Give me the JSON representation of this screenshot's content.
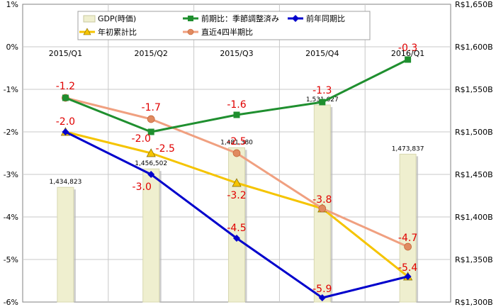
{
  "chart_data": {
    "type": "bar+line",
    "categories": [
      "2015/Q1",
      "2015/Q2",
      "2015/Q3",
      "2015/Q4",
      "2016/Q1"
    ],
    "left_axis": {
      "range": [
        -6,
        1
      ],
      "ticks": [
        1,
        0,
        -1,
        -2,
        -3,
        -4,
        -5,
        -6
      ],
      "tick_labels": [
        "1%",
        "0%",
        "-1%",
        "-2%",
        "-3%",
        "-4%",
        "-5%",
        "-6%"
      ]
    },
    "right_axis": {
      "range": [
        1300,
        1650
      ],
      "ticks": [
        1650,
        1600,
        1550,
        1500,
        1450,
        1400,
        1350,
        1300
      ],
      "tick_labels": [
        "R$1,650B",
        "R$1,600B",
        "R$1,550B",
        "R$1,500B",
        "R$1,450B",
        "R$1,400B",
        "R$1,350B",
        "R$1,300B"
      ]
    },
    "bars": {
      "name": "GDP(時価)",
      "values": [
        1434823,
        1456502,
        1481380,
        1531627,
        1473837
      ],
      "labels": [
        "1,434,823",
        "1,456,502",
        "1,481,380",
        "1,531,627",
        "1,473,837"
      ],
      "color": "#efefcf"
    },
    "series": [
      {
        "name": "前期比：季節調整済み",
        "values": [
          -1.2,
          -2.0,
          -1.6,
          -1.3,
          -0.3
        ],
        "labels": [
          "",
          "-2.0",
          "-1.6",
          "-1.3",
          "-0.3"
        ],
        "color": "#1f8f2f",
        "marker": "square"
      },
      {
        "name": "前年同期比",
        "values": [
          -2.0,
          -3.0,
          -4.5,
          -5.9,
          -5.4
        ],
        "labels": [
          "-2.0",
          "-3.0",
          "-4.5",
          "-5.9",
          "-5.4"
        ],
        "color": "#0000cc",
        "marker": "diamond"
      },
      {
        "name": "年初累計比",
        "values": [
          -2.0,
          -2.5,
          -3.2,
          -3.8,
          -5.4
        ],
        "labels": [
          "",
          "-2.5",
          "-3.2",
          "",
          ""
        ],
        "color": "#f5c400",
        "marker": "triangle"
      },
      {
        "name": "直近4四半期比",
        "values": [
          -1.2,
          -1.7,
          -2.5,
          -3.8,
          -4.7
        ],
        "labels": [
          "-1.2",
          "-1.7",
          "-2.5",
          "-3.8",
          "-4.7"
        ],
        "color": "#f0a080",
        "marker": "circle"
      }
    ],
    "grid": true,
    "legend_placement": "top"
  }
}
